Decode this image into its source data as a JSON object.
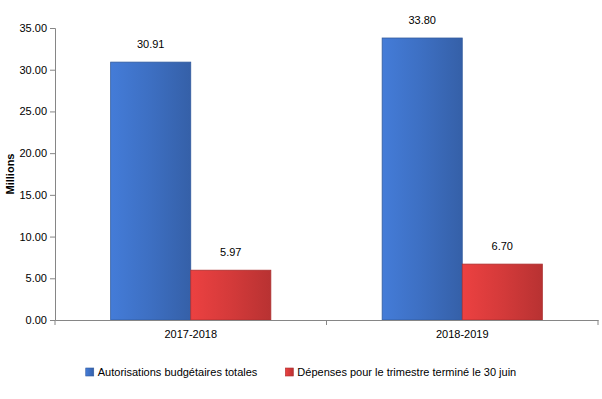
{
  "chart_data": {
    "type": "bar",
    "y_label": "Millions",
    "categories": [
      "2017-2018",
      "2018-2019"
    ],
    "series": [
      {
        "name": "Autorisations budgétaires totales",
        "color": "#3d6fc2",
        "values": [
          30.91,
          33.8
        ],
        "value_labels": [
          "30.91",
          "33.80"
        ]
      },
      {
        "name": "Dépenses pour le trimestre terminé le 30 juin",
        "color": "#d43a3a",
        "values": [
          5.97,
          6.7
        ],
        "value_labels": [
          "5.97",
          "6.70"
        ]
      }
    ],
    "ylim": [
      0,
      35
    ],
    "yticks": [
      {
        "value": 0,
        "label": "0.00"
      },
      {
        "value": 5,
        "label": "5.00"
      },
      {
        "value": 10,
        "label": "10.00"
      },
      {
        "value": 15,
        "label": "15.00"
      },
      {
        "value": 20,
        "label": "20.00"
      },
      {
        "value": 25,
        "label": "25.00"
      },
      {
        "value": 30,
        "label": "30.00"
      },
      {
        "value": 35,
        "label": "35.00"
      }
    ],
    "grid": false,
    "legend": "bottom",
    "data_labels": true
  }
}
